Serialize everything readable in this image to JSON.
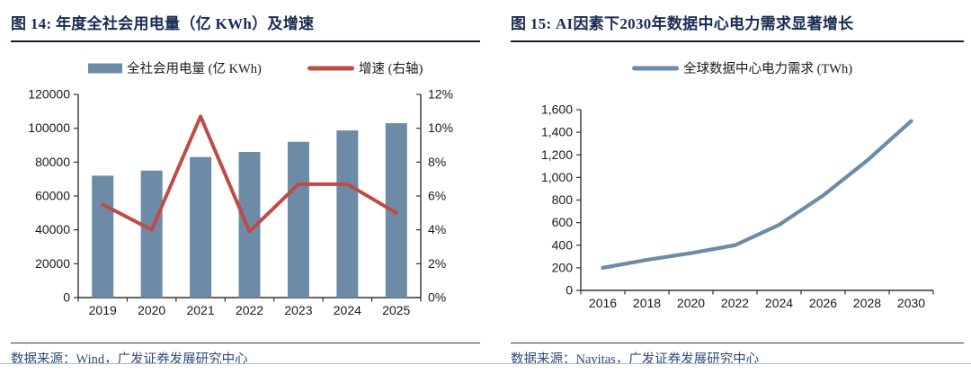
{
  "figures": [
    {
      "title": "图 14: 年度全社会用电量（亿 KWh）及增速",
      "source": "数据来源：Wind，广发证券发展研究中心"
    },
    {
      "title": "图 15: AI因素下2030年数据中心电力需求显著增长",
      "source": "数据来源：Navitas，广发证券发展研究中心"
    }
  ],
  "chart_data": [
    {
      "type": "bar+line",
      "title": "年度全社会用电量（亿 KWh）及增速",
      "categories": [
        "2019",
        "2020",
        "2021",
        "2022",
        "2023",
        "2024",
        "2025"
      ],
      "series": [
        {
          "name": "全社会用电量 (亿 KWh)",
          "type": "bar",
          "axis": "left",
          "color": "#6D8BA7",
          "values": [
            72000,
            75000,
            83000,
            86000,
            92000,
            98700,
            103000
          ]
        },
        {
          "name": "增速 (右轴)",
          "type": "line",
          "axis": "right",
          "color": "#BE4B48",
          "values": [
            5.5,
            4.0,
            10.7,
            3.9,
            6.7,
            6.7,
            5.0
          ]
        }
      ],
      "left_axis": {
        "min": 0,
        "max": 120000,
        "step": 20000,
        "comma": false,
        "suffix": ""
      },
      "right_axis": {
        "min": 0,
        "max": 12,
        "step": 2,
        "comma": false,
        "suffix": "%"
      },
      "legend_position": "top",
      "grid": false
    },
    {
      "type": "line",
      "title": "AI因素下2030年数据中心电力需求显著增长",
      "categories": [
        "2016",
        "2018",
        "2020",
        "2022",
        "2024",
        "2026",
        "2028",
        "2030"
      ],
      "series": [
        {
          "name": "全球数据中心电力需求 (TWh)",
          "type": "line",
          "axis": "left",
          "color": "#6D8BA7",
          "values": [
            200,
            270,
            330,
            400,
            580,
            840,
            1150,
            1500
          ]
        }
      ],
      "left_axis": {
        "min": 0,
        "max": 1600,
        "step": 200,
        "comma": true,
        "suffix": ""
      },
      "legend_position": "top",
      "grid": false
    }
  ],
  "colors": {
    "title_navy": "#182C52",
    "bar_blue": "#6D8BA7",
    "line_red": "#BE4B48",
    "source_blue": "#2F4C78",
    "title_rule_dark": "#101F3C",
    "source_rule_dark": "#3A3A3A",
    "bottom_rule_light": "#B3BFD2",
    "axis_black": "#333333"
  }
}
